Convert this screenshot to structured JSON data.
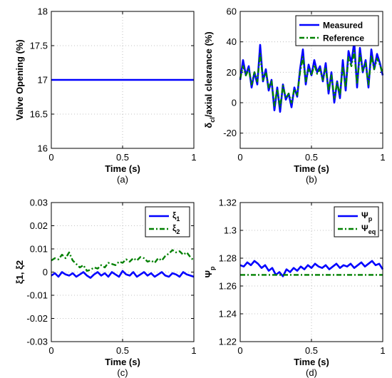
{
  "chart_data": [
    {
      "type": "line",
      "xlabel": "Time (s)",
      "ylabel": "Valve Opening (%)",
      "caption": "(a)",
      "xlim": [
        0,
        1
      ],
      "ylim": [
        16,
        18
      ],
      "xticks": [
        "0",
        "0.5",
        "1"
      ],
      "yticks": [
        "16",
        "16.5",
        "17",
        "17.5",
        "18"
      ],
      "grid": true,
      "legend": null,
      "series": [
        {
          "color": "#0000ff",
          "style": "solid",
          "x": [
            0,
            1
          ],
          "y": [
            17,
            17
          ]
        }
      ]
    },
    {
      "type": "line",
      "xlabel": "Time (s)",
      "ylabel_main": "δ",
      "ylabel_sub": "cl",
      "ylabel_rest": "/axial clearance (%)",
      "caption": "(b)",
      "xlim": [
        0,
        1
      ],
      "ylim": [
        -30,
        60
      ],
      "xticks": [
        "0",
        "0.5",
        "1"
      ],
      "yticks": [
        "-20",
        "0",
        "20",
        "40",
        "60"
      ],
      "grid": true,
      "legend": "top-right",
      "series": [
        {
          "name": "Measured",
          "color": "#0000ff",
          "style": "solid",
          "x": [
            0,
            0.02,
            0.04,
            0.06,
            0.08,
            0.1,
            0.12,
            0.14,
            0.16,
            0.18,
            0.2,
            0.22,
            0.24,
            0.26,
            0.28,
            0.3,
            0.32,
            0.34,
            0.36,
            0.38,
            0.4,
            0.42,
            0.44,
            0.46,
            0.48,
            0.5,
            0.52,
            0.54,
            0.56,
            0.58,
            0.6,
            0.62,
            0.64,
            0.66,
            0.68,
            0.7,
            0.72,
            0.74,
            0.76,
            0.78,
            0.8,
            0.82,
            0.84,
            0.86,
            0.88,
            0.9,
            0.92,
            0.94,
            0.96,
            0.98,
            1
          ],
          "y": [
            15,
            28,
            18,
            24,
            10,
            20,
            12,
            38,
            14,
            22,
            8,
            15,
            -5,
            10,
            -6,
            12,
            2,
            6,
            -3,
            10,
            4,
            22,
            35,
            12,
            25,
            18,
            28,
            20,
            24,
            14,
            26,
            6,
            20,
            0,
            14,
            3,
            28,
            8,
            34,
            26,
            40,
            10,
            36,
            20,
            28,
            10,
            35,
            22,
            32,
            26,
            18
          ]
        },
        {
          "name": "Reference",
          "color": "#008000",
          "style": "dashdot",
          "x": [
            0,
            0.02,
            0.04,
            0.06,
            0.08,
            0.1,
            0.12,
            0.14,
            0.16,
            0.18,
            0.2,
            0.22,
            0.24,
            0.26,
            0.28,
            0.3,
            0.32,
            0.34,
            0.36,
            0.38,
            0.4,
            0.42,
            0.44,
            0.46,
            0.48,
            0.5,
            0.52,
            0.54,
            0.56,
            0.58,
            0.6,
            0.62,
            0.64,
            0.66,
            0.68,
            0.7,
            0.72,
            0.74,
            0.76,
            0.78,
            0.8,
            0.82,
            0.84,
            0.86,
            0.88,
            0.9,
            0.92,
            0.94,
            0.96,
            0.98,
            1
          ],
          "y": [
            16,
            24,
            18,
            22,
            12,
            20,
            14,
            32,
            15,
            20,
            10,
            14,
            -2,
            9,
            -3,
            11,
            3,
            6,
            0,
            9,
            5,
            20,
            30,
            14,
            22,
            18,
            25,
            19,
            22,
            15,
            23,
            8,
            18,
            3,
            13,
            5,
            24,
            10,
            30,
            24,
            34,
            12,
            32,
            21,
            26,
            12,
            31,
            22,
            29,
            25,
            19
          ]
        }
      ]
    },
    {
      "type": "line",
      "xlabel": "Time (s)",
      "ylabel": "ξ1, ξ2",
      "caption": "(c)",
      "xlim": [
        0,
        1
      ],
      "ylim": [
        -0.03,
        0.03
      ],
      "xticks": [
        "0",
        "0.5",
        "1"
      ],
      "yticks": [
        "-0.03",
        "-0.02",
        "-0.01",
        "0",
        "0.01",
        "0.02",
        "0.03"
      ],
      "grid": true,
      "legend": "top-right",
      "series": [
        {
          "name_main": "ξ",
          "name_sub": "1",
          "color": "#0000ff",
          "style": "solid",
          "x": [
            0,
            0.025,
            0.05,
            0.075,
            0.1,
            0.125,
            0.15,
            0.175,
            0.2,
            0.225,
            0.25,
            0.275,
            0.3,
            0.325,
            0.35,
            0.375,
            0.4,
            0.425,
            0.45,
            0.475,
            0.5,
            0.525,
            0.55,
            0.575,
            0.6,
            0.625,
            0.65,
            0.675,
            0.7,
            0.725,
            0.75,
            0.775,
            0.8,
            0.825,
            0.85,
            0.875,
            0.9,
            0.925,
            0.95,
            0.975,
            1
          ],
          "y": [
            -0.0015,
            -0.0005,
            -0.002,
            0.0,
            -0.001,
            -0.0015,
            -0.0005,
            -0.002,
            -0.001,
            0.0,
            -0.0015,
            -0.0025,
            -0.001,
            0.0,
            -0.0015,
            -0.0005,
            -0.002,
            0.0,
            -0.001,
            -0.002,
            0.0005,
            -0.001,
            -0.0015,
            0.0,
            -0.002,
            -0.001,
            0.0,
            -0.0015,
            -0.0005,
            -0.002,
            -0.001,
            0.0,
            -0.0015,
            -0.002,
            -0.0005,
            -0.001,
            -0.002,
            0.0,
            -0.001,
            -0.0015,
            -0.002
          ]
        },
        {
          "name_main": "ξ",
          "name_sub": "2",
          "color": "#008000",
          "style": "dashdot",
          "x": [
            0,
            0.025,
            0.05,
            0.075,
            0.1,
            0.125,
            0.15,
            0.175,
            0.2,
            0.225,
            0.25,
            0.275,
            0.3,
            0.325,
            0.35,
            0.375,
            0.4,
            0.425,
            0.45,
            0.475,
            0.5,
            0.525,
            0.55,
            0.575,
            0.6,
            0.625,
            0.65,
            0.675,
            0.7,
            0.725,
            0.75,
            0.775,
            0.8,
            0.825,
            0.85,
            0.875,
            0.9,
            0.925,
            0.95,
            0.975,
            1
          ],
          "y": [
            0.005,
            0.006,
            0.0055,
            0.0075,
            0.006,
            0.0085,
            0.005,
            0.0035,
            0.002,
            0.003,
            0.0005,
            0.001,
            0.002,
            0.0015,
            0.003,
            0.002,
            0.004,
            0.0035,
            0.003,
            0.0045,
            0.004,
            0.0055,
            0.0045,
            0.006,
            0.005,
            0.0065,
            0.006,
            0.0045,
            0.005,
            0.004,
            0.006,
            0.005,
            0.007,
            0.008,
            0.0095,
            0.0085,
            0.009,
            0.0075,
            0.0085,
            0.0065,
            0.005
          ]
        }
      ]
    },
    {
      "type": "line",
      "xlabel": "Time (s)",
      "ylabel_main": "Ψ",
      "ylabel_sub": "p",
      "caption": "(d)",
      "xlim": [
        0,
        1
      ],
      "ylim": [
        1.22,
        1.32
      ],
      "xticks": [
        "0",
        "0.5",
        "1"
      ],
      "yticks": [
        "1.22",
        "1.24",
        "1.26",
        "1.28",
        "1.3",
        "1.32"
      ],
      "grid": true,
      "legend": "top-right",
      "series": [
        {
          "name_main": "Ψ",
          "name_sub": "p",
          "color": "#0000ff",
          "style": "solid",
          "x": [
            0,
            0.025,
            0.05,
            0.075,
            0.1,
            0.125,
            0.15,
            0.175,
            0.2,
            0.225,
            0.25,
            0.275,
            0.3,
            0.325,
            0.35,
            0.375,
            0.4,
            0.425,
            0.45,
            0.475,
            0.5,
            0.525,
            0.55,
            0.575,
            0.6,
            0.625,
            0.65,
            0.675,
            0.7,
            0.725,
            0.75,
            0.775,
            0.8,
            0.825,
            0.85,
            0.875,
            0.9,
            0.925,
            0.95,
            0.975,
            1
          ],
          "y": [
            1.275,
            1.274,
            1.277,
            1.275,
            1.278,
            1.276,
            1.273,
            1.275,
            1.271,
            1.273,
            1.268,
            1.27,
            1.267,
            1.272,
            1.27,
            1.273,
            1.271,
            1.274,
            1.272,
            1.275,
            1.273,
            1.276,
            1.274,
            1.273,
            1.275,
            1.272,
            1.274,
            1.276,
            1.273,
            1.275,
            1.274,
            1.276,
            1.273,
            1.275,
            1.277,
            1.274,
            1.276,
            1.278,
            1.275,
            1.276,
            1.272
          ]
        },
        {
          "name_main": "Ψ",
          "name_sub": "eq",
          "color": "#008000",
          "style": "dashdot",
          "x": [
            0,
            1
          ],
          "y": [
            1.268,
            1.268
          ]
        }
      ]
    }
  ]
}
